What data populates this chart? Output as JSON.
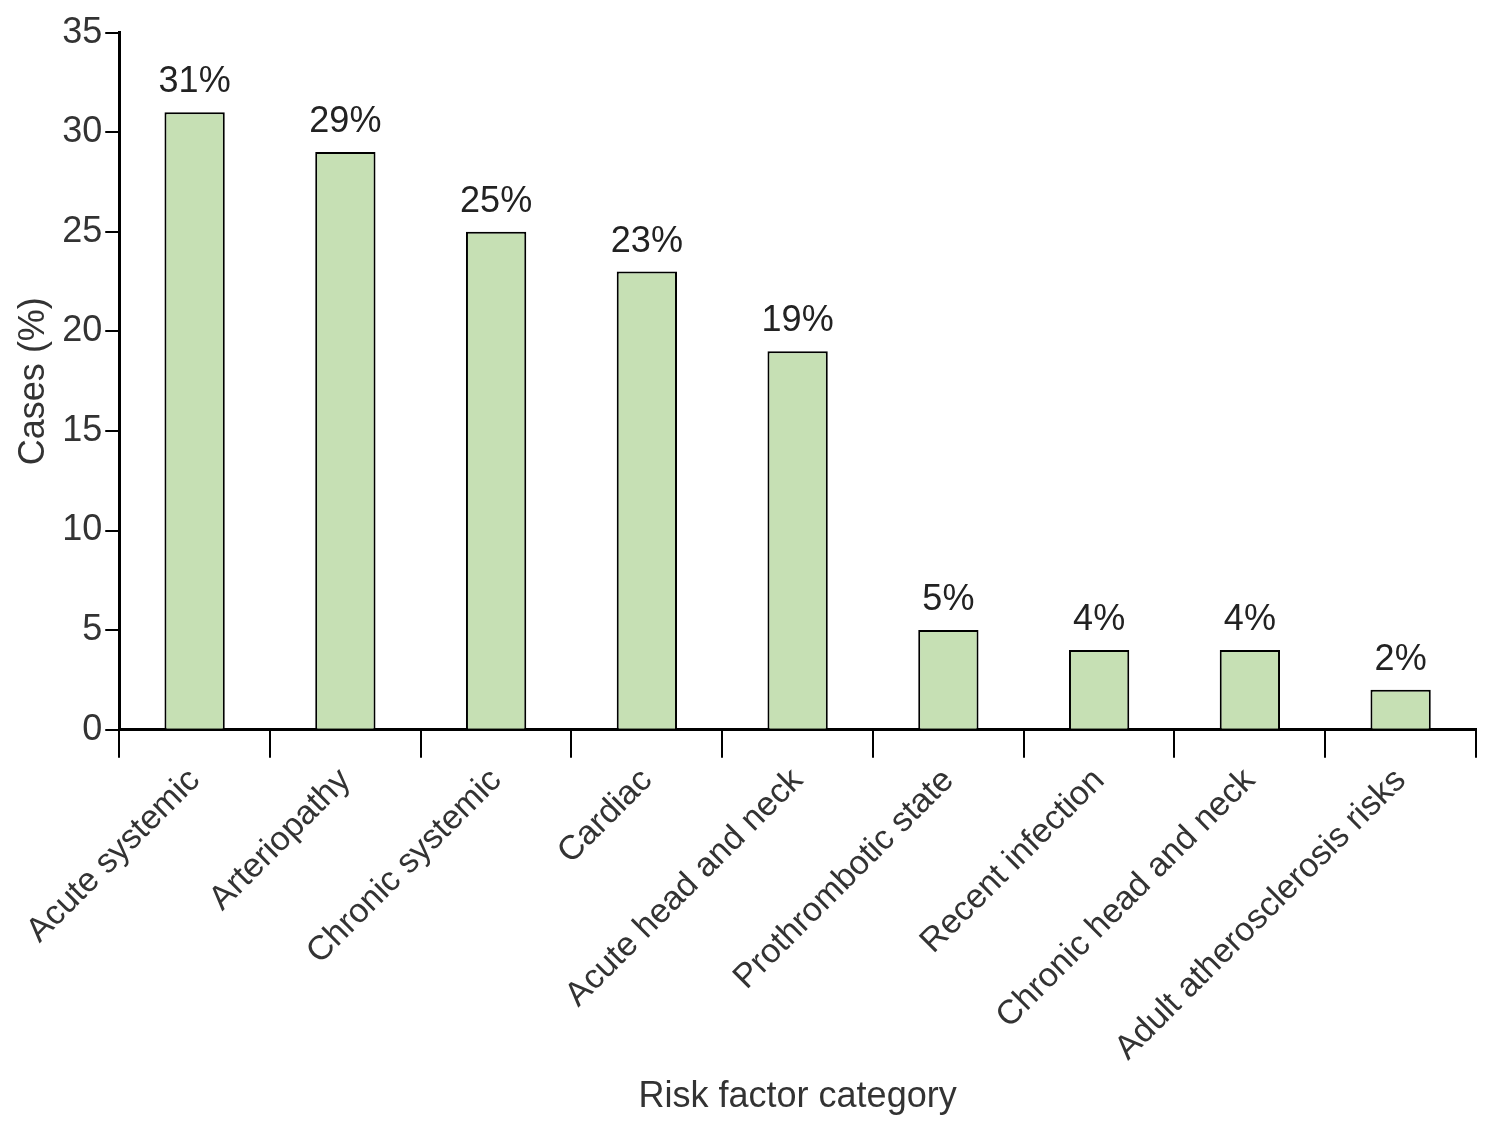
{
  "chart_data": {
    "type": "bar",
    "xlabel": "Risk factor category",
    "ylabel": "Cases (%)",
    "categories": [
      "Acute systemic",
      "Arteriopathy",
      "Chronic systemic",
      "Cardiac",
      "Acute head and neck",
      "Prothrombotic state",
      "Recent infection",
      "Chronic head and neck",
      "Adult atherosclerosis risks"
    ],
    "values": [
      31,
      29,
      25,
      23,
      19,
      5,
      4,
      4,
      2
    ],
    "value_labels": [
      "31%",
      "29%",
      "25%",
      "23%",
      "19%",
      "5%",
      "4%",
      "4%",
      "2%"
    ],
    "color": "#c6e0b4",
    "ylim": [
      0,
      35
    ],
    "yticks": [
      0,
      5,
      10,
      15,
      20,
      25,
      30,
      35
    ],
    "grid": false,
    "legend": false
  }
}
